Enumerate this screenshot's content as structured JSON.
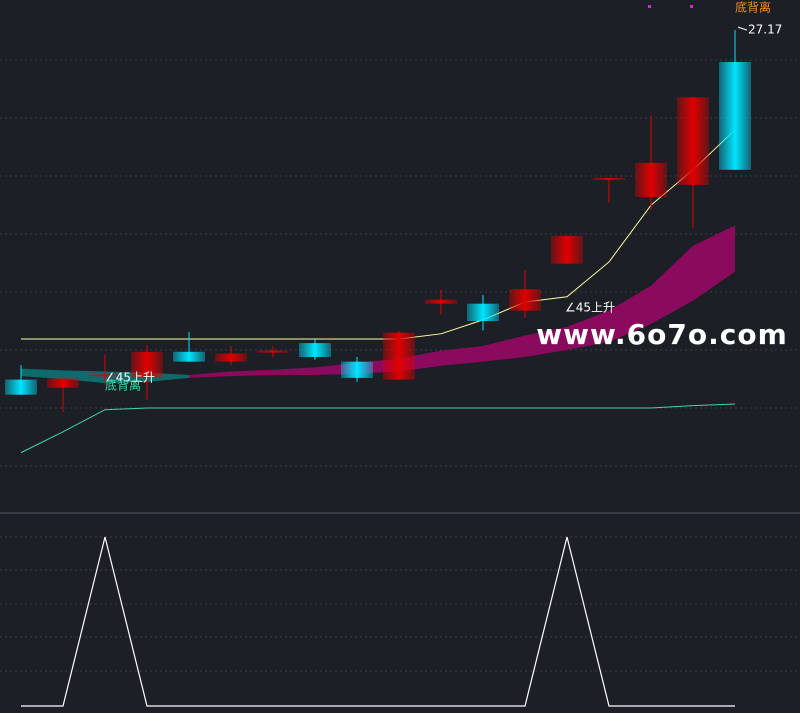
{
  "chart_data": [
    {
      "type": "candlestick",
      "categories": [
        null,
        null,
        null,
        null,
        null,
        null,
        null,
        null,
        null,
        null,
        null,
        null,
        null,
        null,
        null,
        null,
        null,
        null
      ],
      "open": [
        20.88,
        21.16,
        21.23,
        21.62,
        21.45,
        21.59,
        21.64,
        21.53,
        21.17,
        21.95,
        22.52,
        22.15,
        22.7,
        23.62,
        24.62,
        24.88,
        26.01,
        24.76
      ],
      "high": [
        21.39,
        21.16,
        21.57,
        21.74,
        21.96,
        21.72,
        21.72,
        21.83,
        21.53,
        21.98,
        22.69,
        22.6,
        23.03,
        23.62,
        24.62,
        25.7,
        26.01,
        27.17
      ],
      "low": [
        20.88,
        20.58,
        21.05,
        20.79,
        21.45,
        21.39,
        21.53,
        21.48,
        21.1,
        21.14,
        22.26,
        21.99,
        22.2,
        23.14,
        24.19,
        24.07,
        23.76,
        24.76
      ],
      "close": [
        21.14,
        21.0,
        21.2,
        21.17,
        21.62,
        21.45,
        21.62,
        21.77,
        21.45,
        21.14,
        22.45,
        22.45,
        22.33,
        23.14,
        24.6,
        24.29,
        24.5,
        26.62
      ],
      "colors": [
        "#00e5ff",
        "#e00000",
        "#e00000",
        "#e00000",
        "#00e5ff",
        "#e00000",
        "#e00000",
        "#00e5ff",
        "#00e5ff",
        "#e00000",
        "#e00000",
        "#00e5ff",
        "#e00000",
        "#e00000",
        "#e00000",
        "#e00000",
        "#e00000",
        "#00e5ff"
      ],
      "band": {
        "upper": [
          21.33,
          21.3,
          21.28,
          21.26,
          21.22,
          21.28,
          21.31,
          21.35,
          21.43,
          21.5,
          21.64,
          21.72,
          21.9,
          22.05,
          22.33,
          22.76,
          23.45,
          23.8
        ],
        "lower": [
          21.2,
          21.15,
          21.08,
          21.1,
          21.17,
          21.2,
          21.22,
          21.22,
          21.24,
          21.28,
          21.38,
          21.45,
          21.53,
          21.65,
          21.79,
          22.1,
          22.5,
          23.0
        ],
        "colors": [
          "#0f6b6b",
          "#0f6b6b",
          "#0f6b6b",
          "#0f6b6b",
          "#8a0a5e",
          "#8a0a5e",
          "#8a0a5e",
          "#8a0a5e",
          "#8a0a5e",
          "#8a0a5e",
          "#8a0a5e",
          "#8a0a5e",
          "#8a0a5e",
          "#8a0a5e",
          "#8a0a5e",
          "#8a0a5e",
          "#8a0a5e",
          "#8a0a5e"
        ]
      },
      "lines": [
        {
          "color": "#ffffa0",
          "values": [
            21.84,
            21.84,
            21.84,
            21.84,
            21.84,
            21.84,
            21.84,
            21.84,
            21.84,
            21.84,
            21.93,
            22.17,
            22.48,
            22.57,
            23.17,
            24.15,
            24.76,
            25.45
          ]
        },
        {
          "color": "#3fd9a5",
          "values": [
            19.88,
            20.24,
            20.62,
            20.65,
            20.65,
            20.65,
            20.65,
            20.65,
            20.65,
            20.65,
            20.65,
            20.65,
            20.65,
            20.65,
            20.65,
            20.65,
            20.69,
            20.72
          ]
        }
      ],
      "annotations": [
        {
          "text": "∠45上升",
          "color": "#ffffff"
        },
        {
          "text": "底背离",
          "color": "#3fd9a5"
        },
        {
          "text": "∠45上升",
          "color": "#ffffff"
        },
        {
          "text": "底背离",
          "color": "#ff8c1a"
        }
      ],
      "watermark": "www.6o7o.com",
      "ylim": [
        18.89,
        27.69
      ]
    },
    {
      "type": "line",
      "values": [
        0,
        0,
        1,
        0,
        0,
        0,
        0,
        0,
        0,
        0,
        0,
        0,
        0,
        1,
        0,
        0,
        0,
        0
      ],
      "color": "#ffffff",
      "ylim": [
        0,
        1
      ]
    }
  ]
}
